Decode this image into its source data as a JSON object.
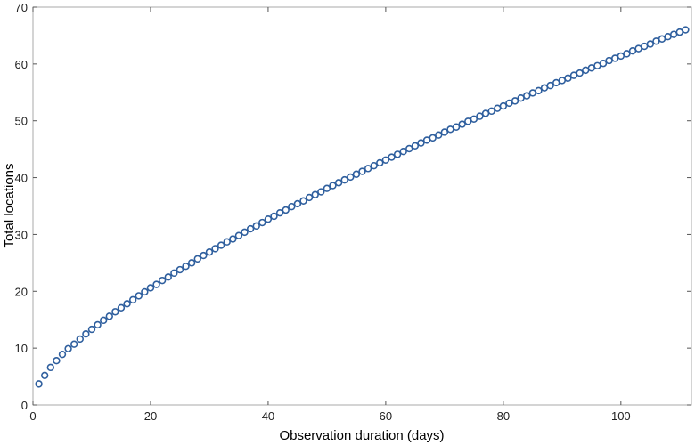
{
  "chart_data": {
    "type": "scatter",
    "title": "",
    "xlabel": "Observation duration (days)",
    "ylabel": "Total locations",
    "xlim": [
      0,
      112
    ],
    "ylim": [
      0,
      70
    ],
    "xticks": [
      0,
      20,
      40,
      60,
      80,
      100
    ],
    "yticks": [
      0,
      10,
      20,
      30,
      40,
      50,
      60,
      70
    ],
    "grid": false,
    "legend": "none",
    "marker": "open-circle",
    "marker_color": "#2f5f9e",
    "x": [
      1,
      2,
      3,
      4,
      5,
      6,
      7,
      8,
      9,
      10,
      11,
      12,
      13,
      14,
      15,
      16,
      17,
      18,
      19,
      20,
      21,
      22,
      23,
      24,
      25,
      26,
      27,
      28,
      29,
      30,
      31,
      32,
      33,
      34,
      35,
      36,
      37,
      38,
      39,
      40,
      41,
      42,
      43,
      44,
      45,
      46,
      47,
      48,
      49,
      50,
      51,
      52,
      53,
      54,
      55,
      56,
      57,
      58,
      59,
      60,
      61,
      62,
      63,
      64,
      65,
      66,
      67,
      68,
      69,
      70,
      71,
      72,
      73,
      74,
      75,
      76,
      77,
      78,
      79,
      80,
      81,
      82,
      83,
      84,
      85,
      86,
      87,
      88,
      89,
      90,
      91,
      92,
      93,
      94,
      95,
      96,
      97,
      98,
      99,
      100,
      101,
      102,
      103,
      104,
      105,
      106,
      107,
      108,
      109,
      110,
      111
    ],
    "y": [
      3.7,
      5.2,
      6.6,
      7.8,
      8.9,
      9.9,
      10.7,
      11.6,
      12.5,
      13.3,
      14.1,
      14.9,
      15.6,
      16.4,
      17.1,
      17.8,
      18.5,
      19.2,
      19.9,
      20.6,
      21.2,
      21.9,
      22.5,
      23.2,
      23.8,
      24.4,
      25.0,
      25.7,
      26.3,
      26.9,
      27.5,
      28.1,
      28.7,
      29.2,
      29.8,
      30.4,
      31.0,
      31.5,
      32.1,
      32.7,
      33.2,
      33.8,
      34.3,
      34.9,
      35.4,
      35.9,
      36.5,
      37.0,
      37.5,
      38.1,
      38.6,
      39.1,
      39.6,
      40.1,
      40.6,
      41.1,
      41.6,
      42.1,
      42.6,
      43.1,
      43.6,
      44.1,
      44.6,
      45.1,
      45.6,
      46.1,
      46.6,
      47.0,
      47.5,
      48.0,
      48.5,
      48.9,
      49.4,
      49.9,
      50.3,
      50.8,
      51.3,
      51.7,
      52.2,
      52.6,
      53.1,
      53.5,
      54.0,
      54.4,
      54.9,
      55.3,
      55.8,
      56.2,
      56.7,
      57.1,
      57.5,
      58.0,
      58.4,
      58.9,
      59.3,
      59.7,
      60.1,
      60.6,
      61.0,
      61.4,
      61.8,
      62.3,
      62.7,
      63.1,
      63.5,
      64.0,
      64.4,
      64.8,
      65.2,
      65.6,
      66.0
    ]
  }
}
